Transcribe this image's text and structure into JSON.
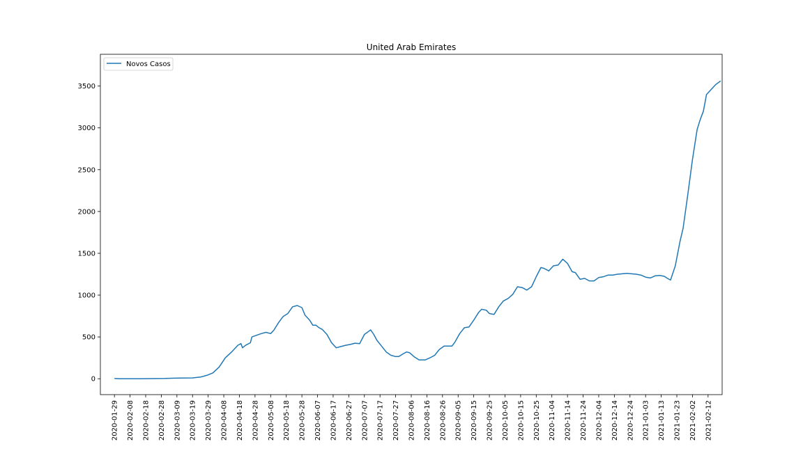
{
  "chart_data": {
    "type": "line",
    "title": "United Arab Emirates",
    "xlabel": "",
    "ylabel": "",
    "xlim": [
      "2020-01-20",
      "2021-02-21"
    ],
    "ylim": [
      -190,
      3880
    ],
    "x_ticks": [
      "2020-01-29",
      "2020-02-08",
      "2020-02-18",
      "2020-02-28",
      "2020-03-09",
      "2020-03-19",
      "2020-03-29",
      "2020-04-08",
      "2020-04-18",
      "2020-04-28",
      "2020-05-08",
      "2020-05-18",
      "2020-05-28",
      "2020-06-07",
      "2020-06-17",
      "2020-06-27",
      "2020-07-07",
      "2020-07-17",
      "2020-07-27",
      "2020-08-06",
      "2020-08-16",
      "2020-08-26",
      "2020-09-05",
      "2020-09-15",
      "2020-09-25",
      "2020-10-05",
      "2020-10-15",
      "2020-10-25",
      "2020-11-04",
      "2020-11-14",
      "2020-11-24",
      "2020-12-04",
      "2020-12-14",
      "2020-12-24",
      "2021-01-03",
      "2021-01-13",
      "2021-01-23",
      "2021-02-02",
      "2021-02-12"
    ],
    "y_ticks": [
      0,
      500,
      1000,
      1500,
      2000,
      2500,
      3000,
      3500
    ],
    "grid": false,
    "legend_position": "upper-left",
    "colors": {
      "series": "#1f77b4"
    },
    "series": [
      {
        "name": "Novos Casos",
        "points": [
          [
            "2020-01-29",
            4
          ],
          [
            "2020-02-01",
            1
          ],
          [
            "2020-02-15",
            1
          ],
          [
            "2020-03-01",
            3
          ],
          [
            "2020-03-09",
            8
          ],
          [
            "2020-03-19",
            10
          ],
          [
            "2020-03-24",
            20
          ],
          [
            "2020-03-28",
            40
          ],
          [
            "2020-04-01",
            70
          ],
          [
            "2020-04-05",
            140
          ],
          [
            "2020-04-09",
            250
          ],
          [
            "2020-04-13",
            320
          ],
          [
            "2020-04-17",
            400
          ],
          [
            "2020-04-19",
            420
          ],
          [
            "2020-04-20",
            370
          ],
          [
            "2020-04-22",
            400
          ],
          [
            "2020-04-25",
            430
          ],
          [
            "2020-04-26",
            500
          ],
          [
            "2020-04-29",
            520
          ],
          [
            "2020-05-02",
            540
          ],
          [
            "2020-05-05",
            555
          ],
          [
            "2020-05-08",
            540
          ],
          [
            "2020-05-10",
            580
          ],
          [
            "2020-05-13",
            670
          ],
          [
            "2020-05-16",
            745
          ],
          [
            "2020-05-19",
            780
          ],
          [
            "2020-05-22",
            860
          ],
          [
            "2020-05-25",
            875
          ],
          [
            "2020-05-28",
            850
          ],
          [
            "2020-05-30",
            760
          ],
          [
            "2020-06-02",
            700
          ],
          [
            "2020-06-04",
            640
          ],
          [
            "2020-06-06",
            640
          ],
          [
            "2020-06-08",
            610
          ],
          [
            "2020-06-10",
            590
          ],
          [
            "2020-06-13",
            530
          ],
          [
            "2020-06-16",
            430
          ],
          [
            "2020-06-19",
            370
          ],
          [
            "2020-06-22",
            385
          ],
          [
            "2020-06-25",
            400
          ],
          [
            "2020-06-28",
            410
          ],
          [
            "2020-07-01",
            425
          ],
          [
            "2020-07-04",
            420
          ],
          [
            "2020-07-07",
            530
          ],
          [
            "2020-07-10",
            570
          ],
          [
            "2020-07-11",
            585
          ],
          [
            "2020-07-13",
            530
          ],
          [
            "2020-07-15",
            460
          ],
          [
            "2020-07-18",
            390
          ],
          [
            "2020-07-21",
            320
          ],
          [
            "2020-07-24",
            280
          ],
          [
            "2020-07-27",
            265
          ],
          [
            "2020-07-29",
            265
          ],
          [
            "2020-08-01",
            300
          ],
          [
            "2020-08-03",
            320
          ],
          [
            "2020-08-05",
            310
          ],
          [
            "2020-08-08",
            260
          ],
          [
            "2020-08-11",
            225
          ],
          [
            "2020-08-15",
            225
          ],
          [
            "2020-08-18",
            250
          ],
          [
            "2020-08-21",
            280
          ],
          [
            "2020-08-24",
            350
          ],
          [
            "2020-08-27",
            390
          ],
          [
            "2020-09-01",
            390
          ],
          [
            "2020-09-03",
            440
          ],
          [
            "2020-09-06",
            540
          ],
          [
            "2020-09-09",
            610
          ],
          [
            "2020-09-12",
            620
          ],
          [
            "2020-09-15",
            700
          ],
          [
            "2020-09-18",
            790
          ],
          [
            "2020-09-20",
            830
          ],
          [
            "2020-09-23",
            820
          ],
          [
            "2020-09-25",
            780
          ],
          [
            "2020-09-28",
            770
          ],
          [
            "2020-10-01",
            860
          ],
          [
            "2020-10-04",
            930
          ],
          [
            "2020-10-07",
            960
          ],
          [
            "2020-10-10",
            1010
          ],
          [
            "2020-10-13",
            1100
          ],
          [
            "2020-10-16",
            1090
          ],
          [
            "2020-10-19",
            1060
          ],
          [
            "2020-10-22",
            1100
          ],
          [
            "2020-10-25",
            1220
          ],
          [
            "2020-10-28",
            1330
          ],
          [
            "2020-10-30",
            1320
          ],
          [
            "2020-11-02",
            1290
          ],
          [
            "2020-11-05",
            1350
          ],
          [
            "2020-11-08",
            1360
          ],
          [
            "2020-11-11",
            1430
          ],
          [
            "2020-11-14",
            1380
          ],
          [
            "2020-11-17",
            1280
          ],
          [
            "2020-11-19",
            1270
          ],
          [
            "2020-11-22",
            1190
          ],
          [
            "2020-11-25",
            1200
          ],
          [
            "2020-11-28",
            1170
          ],
          [
            "2020-12-01",
            1170
          ],
          [
            "2020-12-04",
            1210
          ],
          [
            "2020-12-07",
            1220
          ],
          [
            "2020-12-10",
            1240
          ],
          [
            "2020-12-13",
            1240
          ],
          [
            "2020-12-16",
            1250
          ],
          [
            "2020-12-19",
            1255
          ],
          [
            "2020-12-22",
            1260
          ],
          [
            "2020-12-25",
            1255
          ],
          [
            "2020-12-28",
            1250
          ],
          [
            "2020-12-31",
            1240
          ],
          [
            "2021-01-03",
            1215
          ],
          [
            "2021-01-06",
            1205
          ],
          [
            "2021-01-09",
            1230
          ],
          [
            "2021-01-12",
            1235
          ],
          [
            "2021-01-15",
            1225
          ],
          [
            "2021-01-17",
            1200
          ],
          [
            "2021-01-19",
            1180
          ],
          [
            "2021-01-22",
            1350
          ],
          [
            "2021-01-25",
            1640
          ],
          [
            "2021-01-27",
            1800
          ],
          [
            "2021-01-30",
            2200
          ],
          [
            "2021-02-02",
            2620
          ],
          [
            "2021-02-05",
            2980
          ],
          [
            "2021-02-07",
            3100
          ],
          [
            "2021-02-09",
            3200
          ],
          [
            "2021-02-11",
            3400
          ],
          [
            "2021-02-14",
            3460
          ],
          [
            "2021-02-17",
            3520
          ],
          [
            "2021-02-20",
            3560
          ]
        ]
      }
    ]
  }
}
